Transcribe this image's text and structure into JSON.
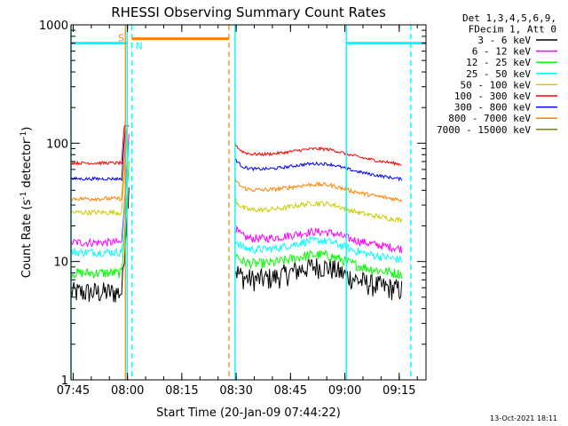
{
  "chart_data": {
    "type": "line",
    "title": "RHESSI Observing Summary Count Rates",
    "xlabel": "Start Time (20-Jan-09 07:44:22)",
    "ylabel_main": "Count Rate (s",
    "ylabel_sup1": "-1",
    "ylabel_mid": " detector",
    "ylabel_sup2": "-1",
    "ylabel_end": ")",
    "y_scale": "log",
    "ylim": [
      1,
      1000
    ],
    "xlim_minutes": [
      0,
      98
    ],
    "x_ticks": [
      {
        "label": "07:45",
        "min": 0.6
      },
      {
        "label": "08:00",
        "min": 15.6
      },
      {
        "label": "08:15",
        "min": 30.6
      },
      {
        "label": "08:30",
        "min": 45.6
      },
      {
        "label": "08:45",
        "min": 60.6
      },
      {
        "label": "09:00",
        "min": 75.6
      },
      {
        "label": "09:15",
        "min": 90.6
      }
    ],
    "y_ticks": [
      {
        "label": "1",
        "value": 1
      },
      {
        "label": "10",
        "value": 10
      },
      {
        "label": "100",
        "value": 100
      },
      {
        "label": "1000",
        "value": 1000
      }
    ],
    "legend_header": [
      "Det 1,3,4,5,6,9,",
      "FDecim 1, Att 0"
    ],
    "series": [
      {
        "name": "3 - 6 keV",
        "color": "#000000",
        "pre": 5.5,
        "post": 7.0,
        "bump": 1.3,
        "noise": 0.22
      },
      {
        "name": "6 - 12 keV",
        "color": "#ff00ff",
        "pre": 14.5,
        "post": 15.5,
        "bump": 1.15,
        "noise": 0.08
      },
      {
        "name": "12 - 25 keV",
        "color": "#00ff00",
        "pre": 8.0,
        "post": 9.5,
        "bump": 1.2,
        "noise": 0.1
      },
      {
        "name": "25 - 50 keV",
        "color": "#00ffff",
        "pre": 12.0,
        "post": 12.5,
        "bump": 1.2,
        "noise": 0.08
      },
      {
        "name": "50 - 100 keV",
        "color": "#cccc00",
        "pre": 26.0,
        "post": 27.0,
        "bump": 1.15,
        "noise": 0.05
      },
      {
        "name": "100 - 300 keV",
        "color": "#ff0000",
        "pre": 68.0,
        "post": 80.0,
        "bump": 1.12,
        "noise": 0.03
      },
      {
        "name": "300 - 800 keV",
        "color": "#0000ff",
        "pre": 50.0,
        "post": 60.0,
        "bump": 1.12,
        "noise": 0.03
      },
      {
        "name": "800 - 7000 keV",
        "color": "#ff8000",
        "pre": 34.0,
        "post": 40.0,
        "bump": 1.12,
        "noise": 0.04
      },
      {
        "name": "7000 - 15000 keV",
        "color": "#808000",
        "pre": 0,
        "post": 0,
        "bump": 1.0,
        "noise": 0
      }
    ],
    "gaps": [
      {
        "start": 16.0,
        "end": 45.3
      }
    ],
    "annotations": {
      "saa_label": "S",
      "saa_start_min": 15.8,
      "saa_end_min": 43.6,
      "saa_color": "#ff8000",
      "night_label": "N",
      "night_start_min": 0.0,
      "night_end_min": 16.8,
      "night2_start_min": 76.0,
      "night2_end_min": 98.0,
      "night_color": "#00ffff",
      "level_value": 700
    },
    "footer_date": "13-Oct-2021 18:11"
  }
}
